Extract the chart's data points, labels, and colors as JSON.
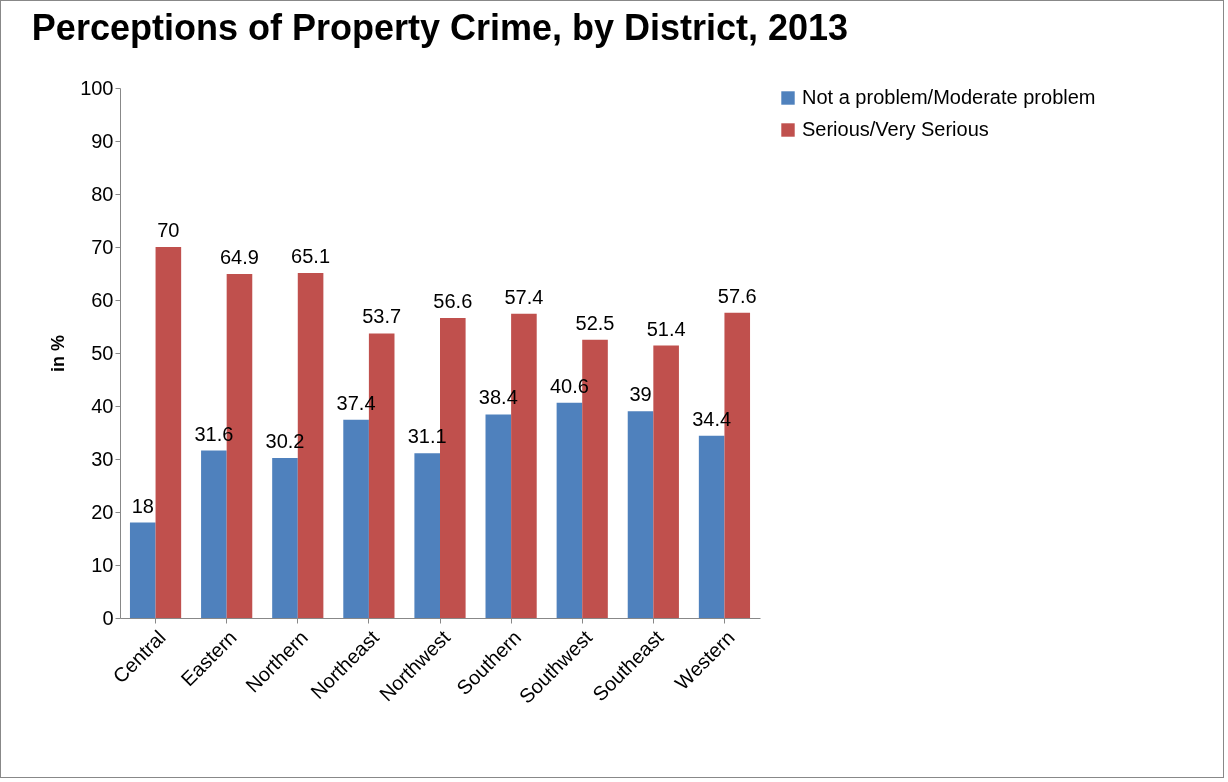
{
  "chart_data": {
    "type": "bar",
    "title": "Perceptions of Property Crime, by District, 2013",
    "ylabel": "in %",
    "categories": [
      "Central",
      "Eastern",
      "Northern",
      "Northeast",
      "Northwest",
      "Southern",
      "Southwest",
      "Southeast",
      "Western"
    ],
    "series": [
      {
        "name": "Not a problem/Moderate problem",
        "color": "#4f81bd",
        "values": [
          18,
          31.6,
          30.2,
          37.4,
          31.1,
          38.4,
          40.6,
          39,
          34.4
        ]
      },
      {
        "name": "Serious/Very Serious",
        "color": "#c0504d",
        "values": [
          70,
          64.9,
          65.1,
          53.7,
          56.6,
          57.4,
          52.5,
          51.4,
          57.6
        ]
      }
    ],
    "ylim": [
      0,
      100
    ],
    "yticks": [
      0,
      10,
      20,
      30,
      40,
      50,
      60,
      70,
      80,
      90,
      100
    ],
    "legend": "right",
    "data_labels": true
  }
}
